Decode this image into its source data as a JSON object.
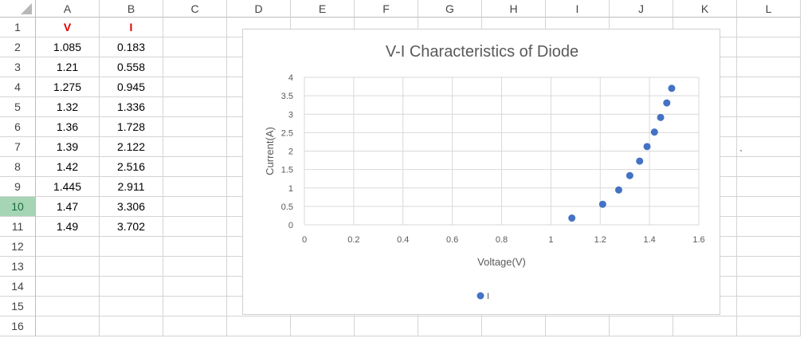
{
  "columns": [
    "A",
    "B",
    "C",
    "D",
    "E",
    "F",
    "G",
    "H",
    "I",
    "J",
    "K",
    "L"
  ],
  "rows": [
    "1",
    "2",
    "3",
    "4",
    "5",
    "6",
    "7",
    "8",
    "9",
    "10",
    "11",
    "12",
    "13",
    "14",
    "15",
    "16"
  ],
  "active_row": "10",
  "header_row": {
    "V": "V",
    "I": "I"
  },
  "table": [
    [
      "1.085",
      "0.183"
    ],
    [
      "1.21",
      "0.558"
    ],
    [
      "1.275",
      "0.945"
    ],
    [
      "1.32",
      "1.336"
    ],
    [
      "1.36",
      "1.728"
    ],
    [
      "1.39",
      "2.122"
    ],
    [
      "1.42",
      "2.516"
    ],
    [
      "1.445",
      "2.911"
    ],
    [
      "1.47",
      "3.306"
    ],
    [
      "1.49",
      "3.702"
    ]
  ],
  "stray_mark": "`",
  "chart_data": {
    "type": "scatter",
    "title": "V-I Characteristics of Diode",
    "xlabel": "Voltage(V)",
    "ylabel": "Current(A)",
    "xlim": [
      0,
      1.6
    ],
    "ylim": [
      0,
      4
    ],
    "xticks": [
      "0",
      "0.2",
      "0.4",
      "0.6",
      "0.8",
      "1",
      "1.2",
      "1.4",
      "1.6"
    ],
    "yticks": [
      "0",
      "0.5",
      "1",
      "1.5",
      "2",
      "2.5",
      "3",
      "3.5",
      "4"
    ],
    "grid": true,
    "legend_position": "bottom",
    "series": [
      {
        "name": "I",
        "color": "#4472c4",
        "x": [
          1.085,
          1.21,
          1.275,
          1.32,
          1.36,
          1.39,
          1.42,
          1.445,
          1.47,
          1.49
        ],
        "y": [
          0.183,
          0.558,
          0.945,
          1.336,
          1.728,
          2.122,
          2.516,
          2.911,
          3.306,
          3.702
        ]
      }
    ]
  }
}
